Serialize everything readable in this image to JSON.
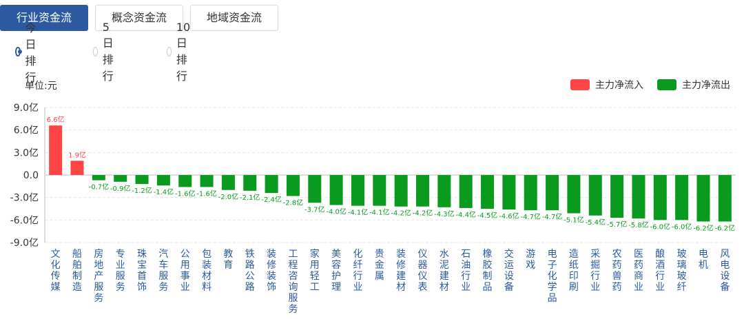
{
  "tabs": [
    {
      "label": "行业资金流",
      "active": true
    },
    {
      "label": "概念资金流",
      "active": false
    },
    {
      "label": "地域资金流",
      "active": false
    }
  ],
  "ranking": [
    {
      "label": "今日排行",
      "selected": true
    },
    {
      "label": "5日排行",
      "selected": false
    },
    {
      "label": "10日排行",
      "selected": false
    }
  ],
  "unit_label": "单位:元",
  "legend": {
    "inflow": {
      "label": "主力净流入",
      "color": "#ff4545"
    },
    "outflow": {
      "label": "主力净流出",
      "color": "#0a9a1e"
    }
  },
  "chart_data": {
    "type": "bar",
    "ylim": [
      -9.0,
      9.0
    ],
    "yticks": [
      9.0,
      6.0,
      3.0,
      0.0,
      -3.0,
      -6.0,
      -9.0
    ],
    "ytick_labels": [
      "9.0亿",
      "6.0亿",
      "3.0亿",
      "0.0",
      "-3.0亿",
      "-6.0亿",
      "-9.0亿"
    ],
    "grid": true,
    "categories": [
      "文化传媒",
      "船舶制造",
      "房地产服务",
      "专业服务",
      "珠宝首饰",
      "汽车服务",
      "公用事业",
      "包装材料",
      "教育",
      "铁路公路",
      "装修装饰",
      "工程咨询服务",
      "家用轻工",
      "美容护理",
      "化纤行业",
      "贵金属",
      "装修建材",
      "仪器仪表",
      "水泥建材",
      "石油行业",
      "橡胶制品",
      "交运设备",
      "游戏",
      "电子化学品",
      "造纸印刷",
      "采掘行业",
      "农药兽药",
      "医药商业",
      "酿酒行业",
      "玻璃玻纤",
      "电机",
      "风电设备"
    ],
    "values": [
      6.6,
      1.9,
      -0.7,
      -0.9,
      -1.2,
      -1.4,
      -1.6,
      -1.6,
      -2.0,
      -2.1,
      -2.4,
      -2.8,
      -3.7,
      -4.0,
      -4.1,
      -4.1,
      -4.2,
      -4.2,
      -4.3,
      -4.4,
      -4.5,
      -4.6,
      -4.7,
      -4.7,
      -5.1,
      -5.4,
      -5.7,
      -5.8,
      -6.0,
      -6.0,
      -6.2,
      -6.2
    ],
    "value_labels": [
      "6.6亿",
      "1.9亿",
      "-0.7亿",
      "-0.9亿",
      "-1.2亿",
      "-1.4亿",
      "-1.6亿",
      "-1.6亿",
      "-2.0亿",
      "-2.1亿",
      "-2.4亿",
      "-2.8亿",
      "-3.7亿",
      "-4.0亿",
      "-4.1亿",
      "-4.1亿",
      "-4.2亿",
      "-4.2亿",
      "-4.3亿",
      "-4.4亿",
      "-4.5亿",
      "-4.6亿",
      "-4.7亿",
      "-4.7亿",
      "-5.1亿",
      "-5.4亿",
      "-5.7亿",
      "-5.8亿",
      "-6.0亿",
      "-6.0亿",
      "-6.2亿",
      "-6.2亿"
    ]
  }
}
